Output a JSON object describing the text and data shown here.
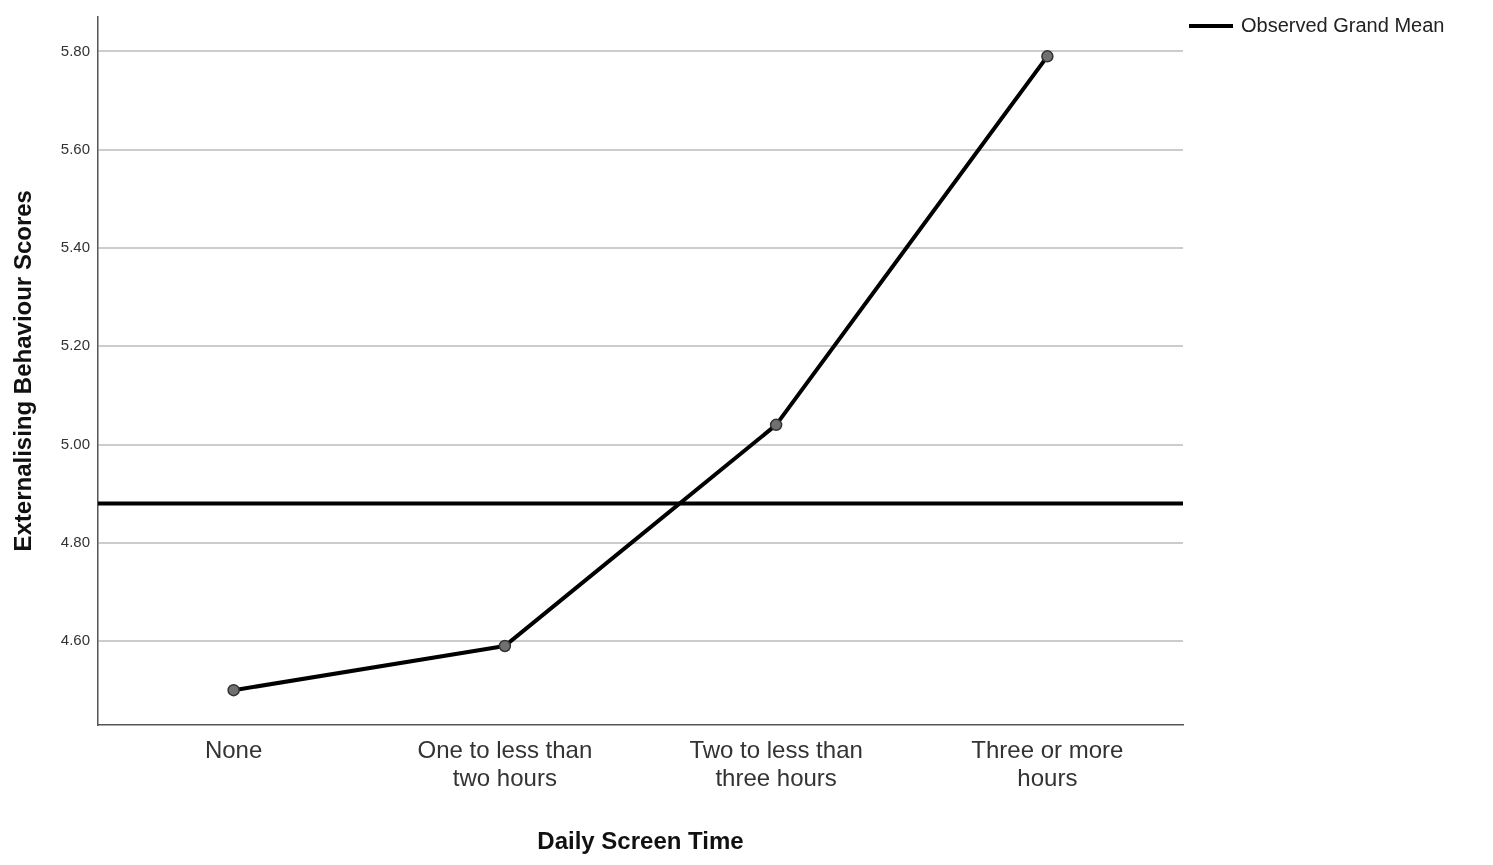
{
  "chart_data": {
    "type": "line",
    "xlabel": "Daily Screen Time",
    "ylabel": "Externalising Behaviour Scores",
    "categories": [
      "None",
      "One to less than two hours",
      "Two to less than three hours",
      "Three or more hours"
    ],
    "series": [
      {
        "color": "#000000",
        "values": [
          4.5,
          4.59,
          5.04,
          5.79
        ]
      }
    ],
    "ylim": [
      4.43,
      5.87
    ],
    "yticks": [
      {
        "value": 4.6,
        "label": "4.60"
      },
      {
        "value": 4.8,
        "label": "4.80"
      },
      {
        "value": 5.0,
        "label": "5.00"
      },
      {
        "value": 5.2,
        "label": "5.20"
      },
      {
        "value": 5.4,
        "label": "5.40"
      },
      {
        "value": 5.6,
        "label": "5.60"
      },
      {
        "value": 5.8,
        "label": "5.80"
      }
    ],
    "ref_lines": [
      {
        "axis": "y",
        "value": 4.88,
        "label": "Observed Grand Mean",
        "color": "#000000"
      }
    ],
    "grid": "y",
    "legend": "top right",
    "marker": "circle",
    "line_style": "solid"
  }
}
